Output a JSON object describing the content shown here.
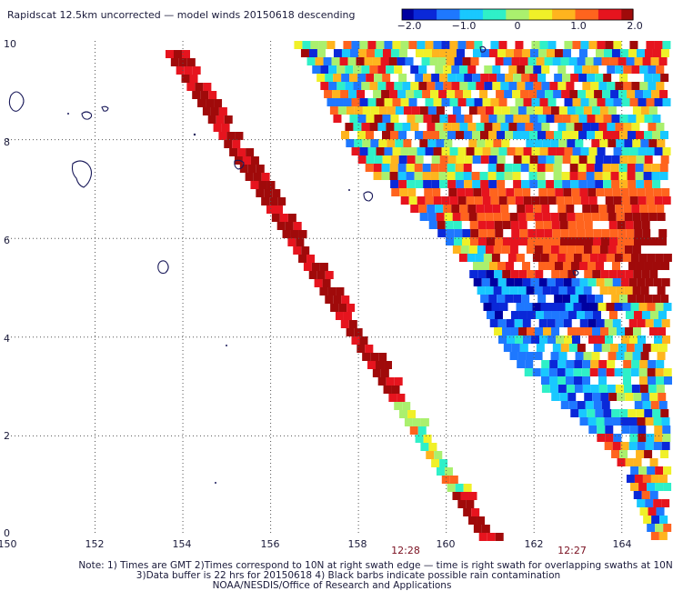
{
  "title": "Rapidscat 12.5km uncorrected — model winds 20150618 descending",
  "colorbar": {
    "tick_labels": [
      "−2.0",
      "−1.0",
      "0",
      "1.0",
      "2.0"
    ],
    "min": -2.0,
    "max": 2.0,
    "colors": [
      "#0000a0",
      "#0a28d8",
      "#1e78ff",
      "#19c8ff",
      "#2ff0c8",
      "#aaf06e",
      "#f0f028",
      "#ffb41e",
      "#ff641e",
      "#e6141e",
      "#a00a0a"
    ]
  },
  "axes": {
    "x_ticks": [
      "150",
      "152",
      "154",
      "156",
      "158",
      "160",
      "162",
      "164"
    ],
    "y_ticks": [
      "0",
      "2",
      "4",
      "6",
      "8",
      "10"
    ],
    "x_range": [
      150,
      165
    ],
    "y_range": [
      0,
      10
    ]
  },
  "swath_times": [
    {
      "label": "12:28",
      "lon": 159.15
    },
    {
      "label": "12:27",
      "lon": 162.95
    }
  ],
  "footer": {
    "line1": "Note: 1) Times are GMT 2)Times correspond to 10N at right swath edge — time is right swath for overlapping swaths at 10N",
    "line2": "3)Data buffer is 22 hrs for 20150618 4) Black barbs indicate possible rain contamination",
    "line3": "NOAA/NESDIS/Office of Research and Applications"
  }
}
